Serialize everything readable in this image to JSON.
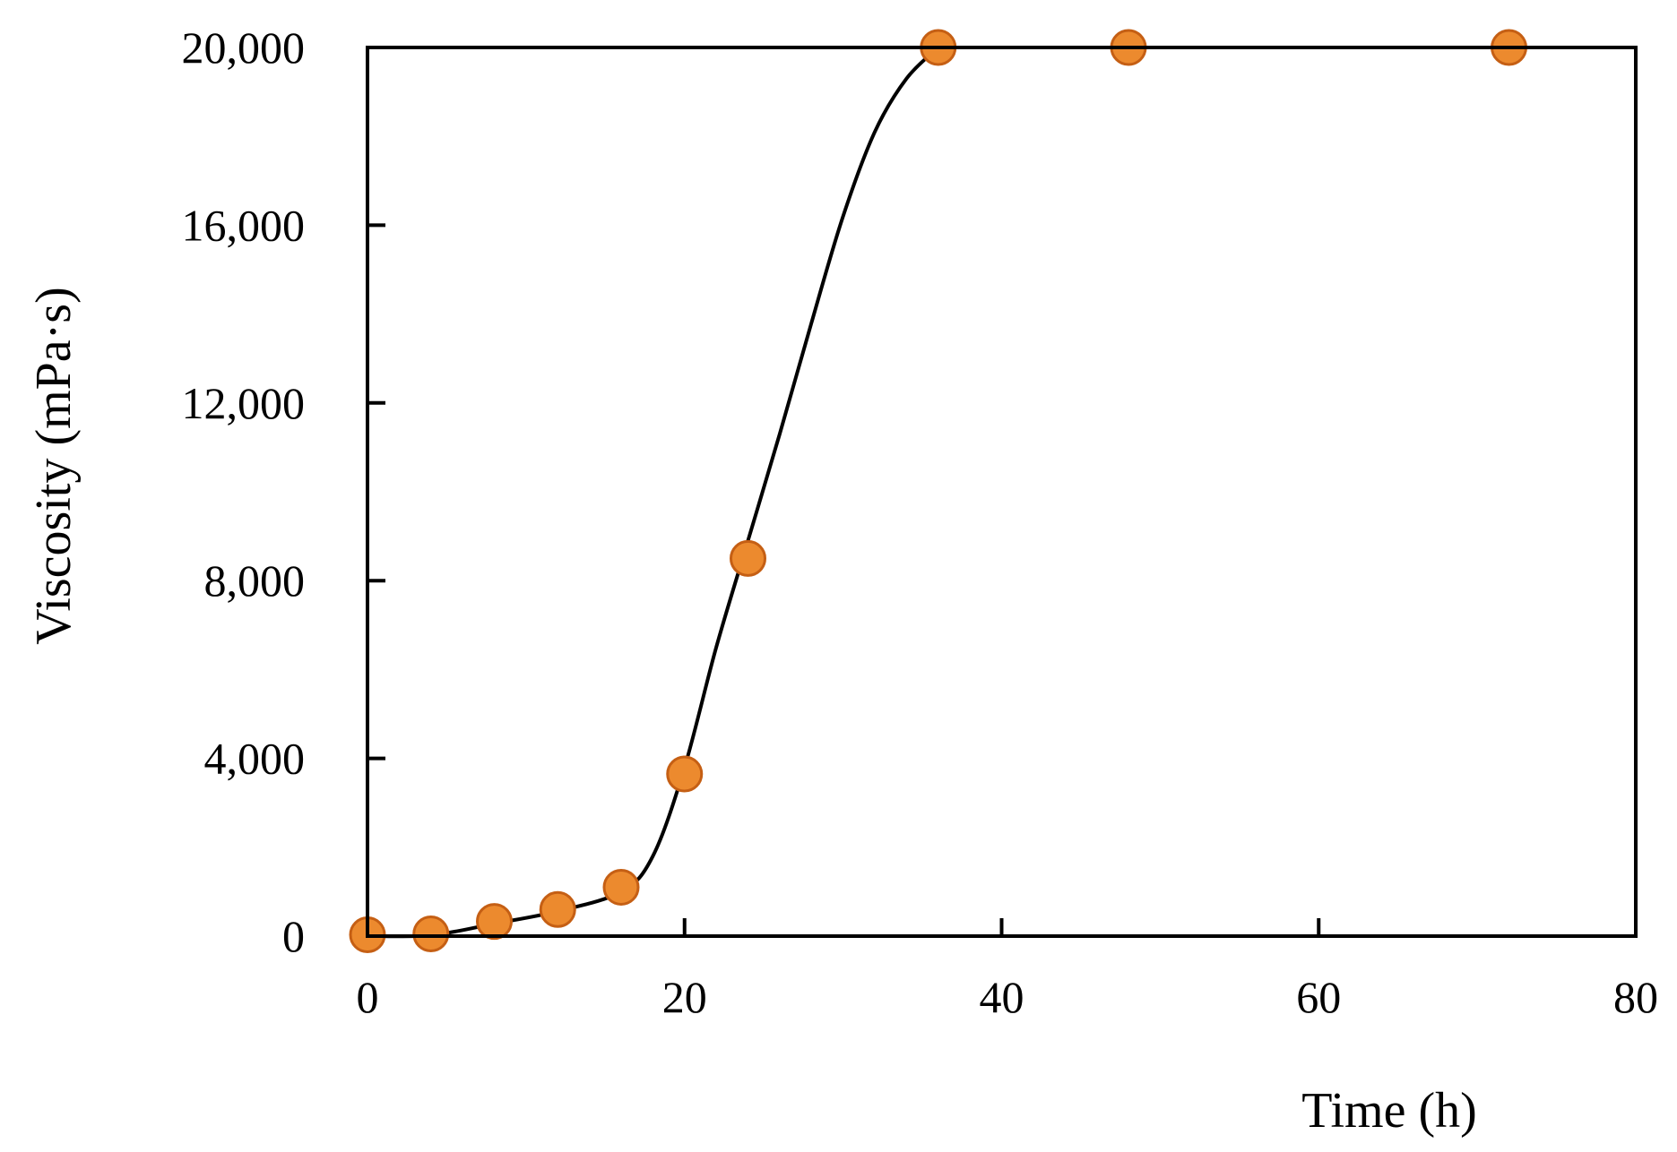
{
  "chart_data": {
    "type": "scatter",
    "title": "",
    "xlabel": "Time (h)",
    "ylabel": "Viscosity (mPa·s)",
    "xlim": [
      0,
      80
    ],
    "ylim": [
      0,
      20000
    ],
    "x_ticks": [
      0,
      20,
      40,
      60,
      80
    ],
    "y_ticks": [
      0,
      4000,
      8000,
      12000,
      16000,
      20000
    ],
    "x_tick_labels": [
      "0",
      "20",
      "40",
      "60",
      "80"
    ],
    "y_tick_labels": [
      "0",
      "4,000",
      "8,000",
      "12,000",
      "16,000",
      "20,000"
    ],
    "grid": false,
    "legend": "none",
    "series": [
      {
        "x": [
          0,
          4,
          8,
          12,
          16,
          20,
          24,
          36,
          48,
          72
        ],
        "y": [
          30,
          50,
          330,
          600,
          1100,
          3650,
          8500,
          20000,
          20000,
          20000
        ],
        "marker_color": "#ec8a2e",
        "marker_edge_color": "#c55f14"
      }
    ],
    "trend_curve": {
      "x": [
        0,
        4,
        8,
        12,
        16,
        18,
        20,
        22,
        24,
        26,
        28,
        30,
        32,
        34,
        36
      ],
      "y": [
        0,
        20,
        280,
        560,
        1000,
        1800,
        3800,
        6500,
        8900,
        11300,
        13800,
        16200,
        18100,
        19300,
        20000
      ],
      "color": "#000000"
    }
  }
}
